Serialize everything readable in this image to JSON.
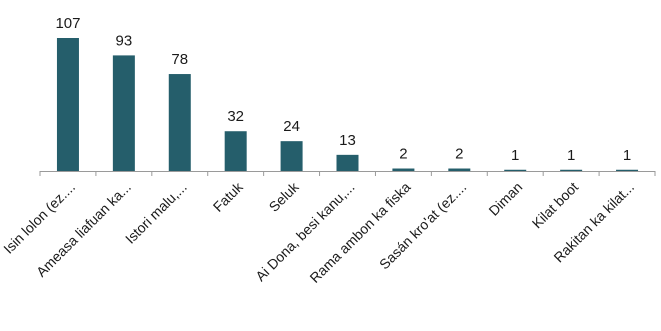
{
  "chart_data": {
    "type": "bar",
    "title": "",
    "xlabel": "",
    "ylabel": "",
    "categories": [
      "Isin lolon (ez....",
      "Ameasa liafuan ka...",
      "Istori malu,...",
      "Fatuk",
      "Seluk",
      "Ai Dona, besi kanu,...",
      "Rama ambon ka fiska",
      "Sasán kro'at (ez....",
      "Diman",
      "Kilat boot",
      "Rakitan ka kilat..."
    ],
    "values": [
      107,
      93,
      78,
      32,
      24,
      13,
      2,
      2,
      1,
      1,
      1
    ],
    "ylim": [
      0,
      107
    ],
    "grid": false,
    "data_labels": true,
    "bar_color": "#255e6b",
    "axis_color": "#9a9a9a"
  }
}
